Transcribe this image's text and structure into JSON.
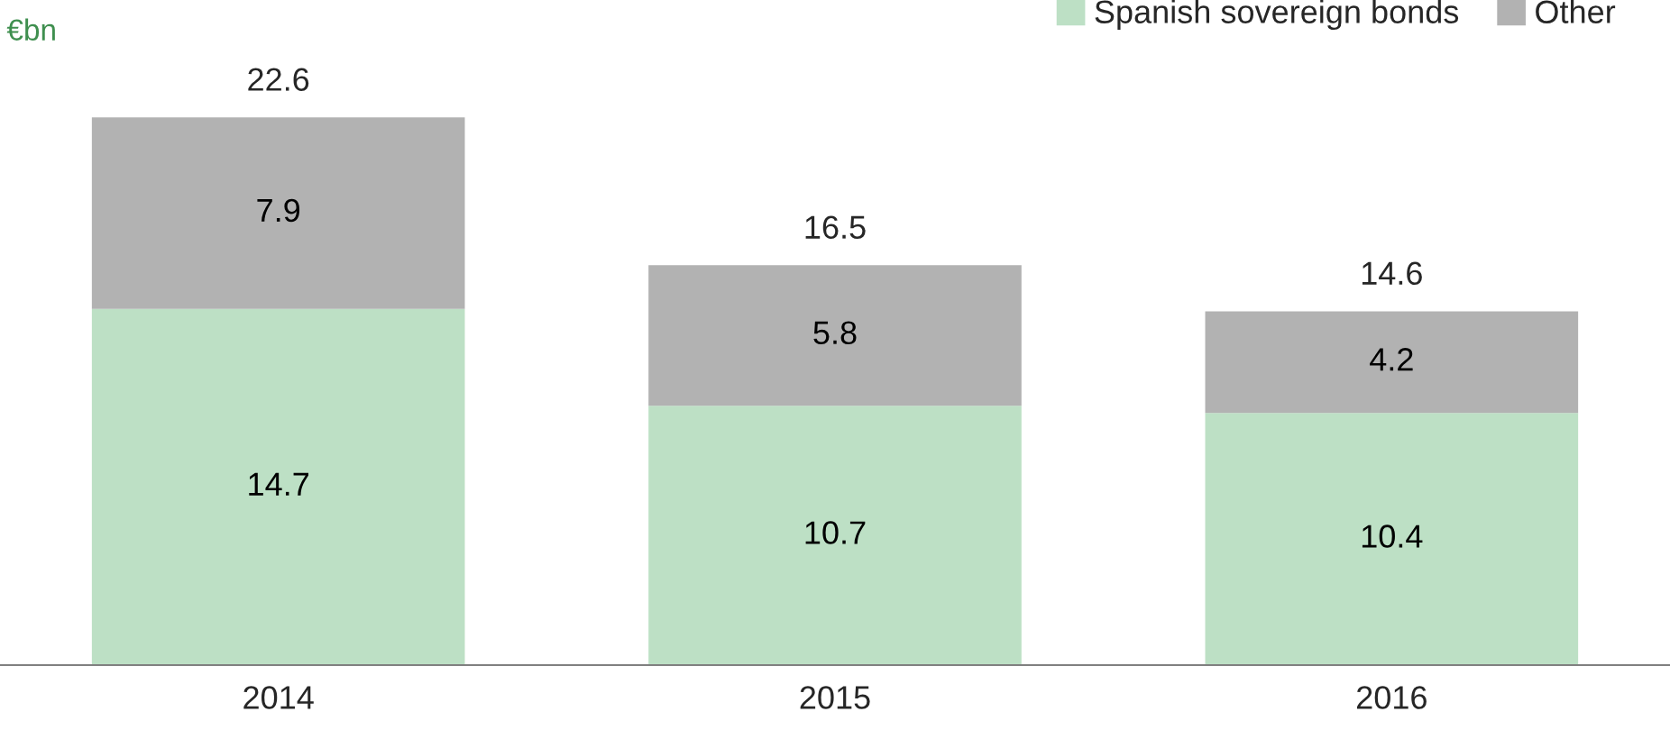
{
  "chart_data": {
    "type": "bar",
    "stacked": true,
    "ylabel": "€bn",
    "categories": [
      "2014",
      "2015",
      "2016"
    ],
    "series": [
      {
        "name": "Spanish sovereign bonds",
        "color": "#bde0c5",
        "values": [
          14.7,
          10.7,
          10.4
        ]
      },
      {
        "name": "Other",
        "color": "#b2b2b2",
        "values": [
          7.9,
          5.8,
          4.2
        ]
      }
    ],
    "data_labels": true,
    "totals": [
      "22.6",
      "16.5",
      "14.6"
    ],
    "legend": "top right",
    "grid": false
  }
}
